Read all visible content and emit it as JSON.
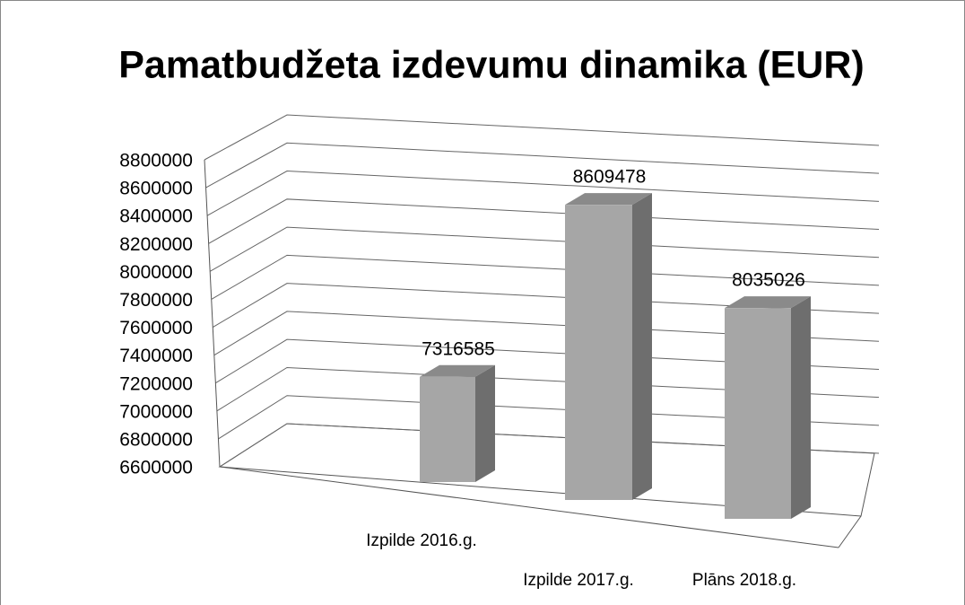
{
  "chart_data": {
    "type": "bar3d",
    "title": "Pamatbudžeta izdevumu dinamika (EUR)",
    "categories": [
      "Izpilde 2016.g.",
      "Izpilde 2017.g.",
      "Plāns 2018.g."
    ],
    "values": [
      7316585,
      8609478,
      8035026
    ],
    "color": "#a6a6a6",
    "ylim": [
      6600000,
      8800000
    ],
    "yticks": [
      6600000,
      6800000,
      7000000,
      7200000,
      7400000,
      7600000,
      7800000,
      8000000,
      8200000,
      8400000,
      8600000,
      8800000
    ],
    "grid": true
  }
}
